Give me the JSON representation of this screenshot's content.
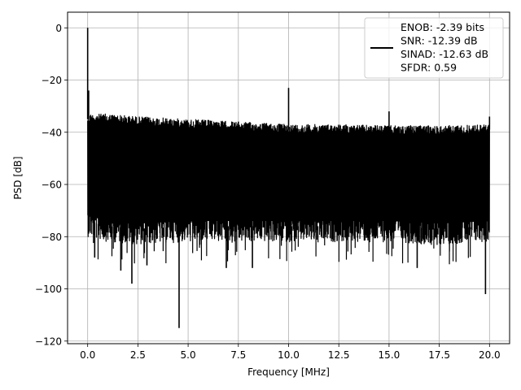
{
  "chart_data": {
    "type": "line",
    "title": "",
    "xlabel": "Frequency [MHz]",
    "ylabel": "PSD [dB]",
    "xlim": [
      -1.0,
      21.0
    ],
    "ylim": [
      -121,
      6
    ],
    "x_ticks": [
      0.0,
      2.5,
      5.0,
      7.5,
      10.0,
      12.5,
      15.0,
      17.5,
      20.0
    ],
    "x_tick_labels": [
      "0.0",
      "2.5",
      "5.0",
      "7.5",
      "10.0",
      "12.5",
      "15.0",
      "17.5",
      "20.0"
    ],
    "y_ticks": [
      0,
      -20,
      -40,
      -60,
      -80,
      -100,
      -120
    ],
    "y_tick_labels": [
      "0",
      "−20",
      "−40",
      "−60",
      "−80",
      "−100",
      "−120"
    ],
    "grid": true,
    "legend_position": "top-right",
    "series": [
      {
        "name": "ENOB: -2.39 bits\nSNR: -12.39 dB\nSINAD: -12.63 dB\nSFDR: 0.59",
        "color": "#000000",
        "noise_band": {
          "x": [
            0.0,
            1.0,
            2.5,
            5.0,
            7.5,
            10.0,
            12.5,
            15.0,
            17.5,
            20.0
          ],
          "upper": [
            -33,
            -33,
            -34,
            -35,
            -36,
            -37,
            -37,
            -37.5,
            -37.5,
            -37
          ],
          "lower": [
            -78,
            -80,
            -81,
            -80,
            -80,
            -80,
            -80,
            -80,
            -81,
            -80
          ]
        },
        "spikes": [
          {
            "x": 0.0,
            "y": 0
          },
          {
            "x": 0.05,
            "y": -24
          },
          {
            "x": 10.0,
            "y": -23
          },
          {
            "x": 15.0,
            "y": -32
          },
          {
            "x": 20.0,
            "y": -34
          }
        ],
        "dips": [
          {
            "x": 0.35,
            "y": -88
          },
          {
            "x": 1.65,
            "y": -93
          },
          {
            "x": 2.2,
            "y": -98
          },
          {
            "x": 2.95,
            "y": -91
          },
          {
            "x": 4.55,
            "y": -115
          },
          {
            "x": 6.9,
            "y": -92
          },
          {
            "x": 8.2,
            "y": -92
          },
          {
            "x": 16.4,
            "y": -92
          },
          {
            "x": 19.8,
            "y": -102
          }
        ]
      }
    ]
  }
}
